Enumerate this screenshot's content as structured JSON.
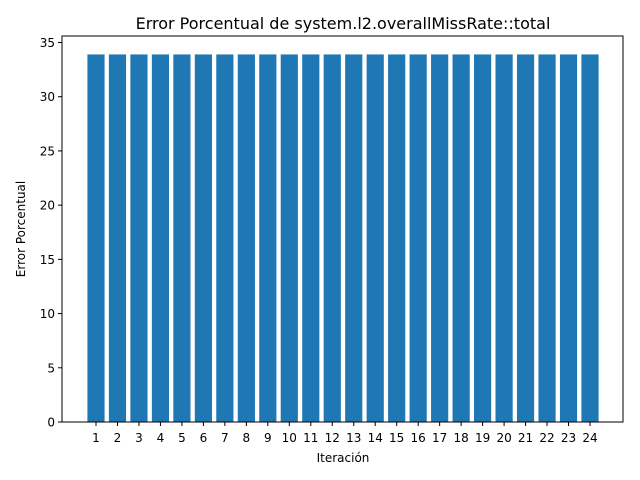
{
  "chart_data": {
    "type": "bar",
    "title": "Error Porcentual de system.l2.overallMissRate::total",
    "xlabel": "Iteración",
    "ylabel": "Error Porcentual",
    "categories": [
      "1",
      "2",
      "3",
      "4",
      "5",
      "6",
      "7",
      "8",
      "9",
      "10",
      "11",
      "12",
      "13",
      "14",
      "15",
      "16",
      "17",
      "18",
      "19",
      "20",
      "21",
      "22",
      "23",
      "24"
    ],
    "values": [
      33.9,
      33.9,
      33.9,
      33.9,
      33.9,
      33.9,
      33.9,
      33.9,
      33.9,
      33.9,
      33.9,
      33.9,
      33.9,
      33.9,
      33.9,
      33.9,
      33.9,
      33.9,
      33.9,
      33.9,
      33.9,
      33.9,
      33.9,
      33.9
    ],
    "ylim": [
      0,
      35.6
    ],
    "yticks": [
      0,
      5,
      10,
      15,
      20,
      25,
      30,
      35
    ],
    "grid": false,
    "bar_color": "#1f77b4"
  }
}
